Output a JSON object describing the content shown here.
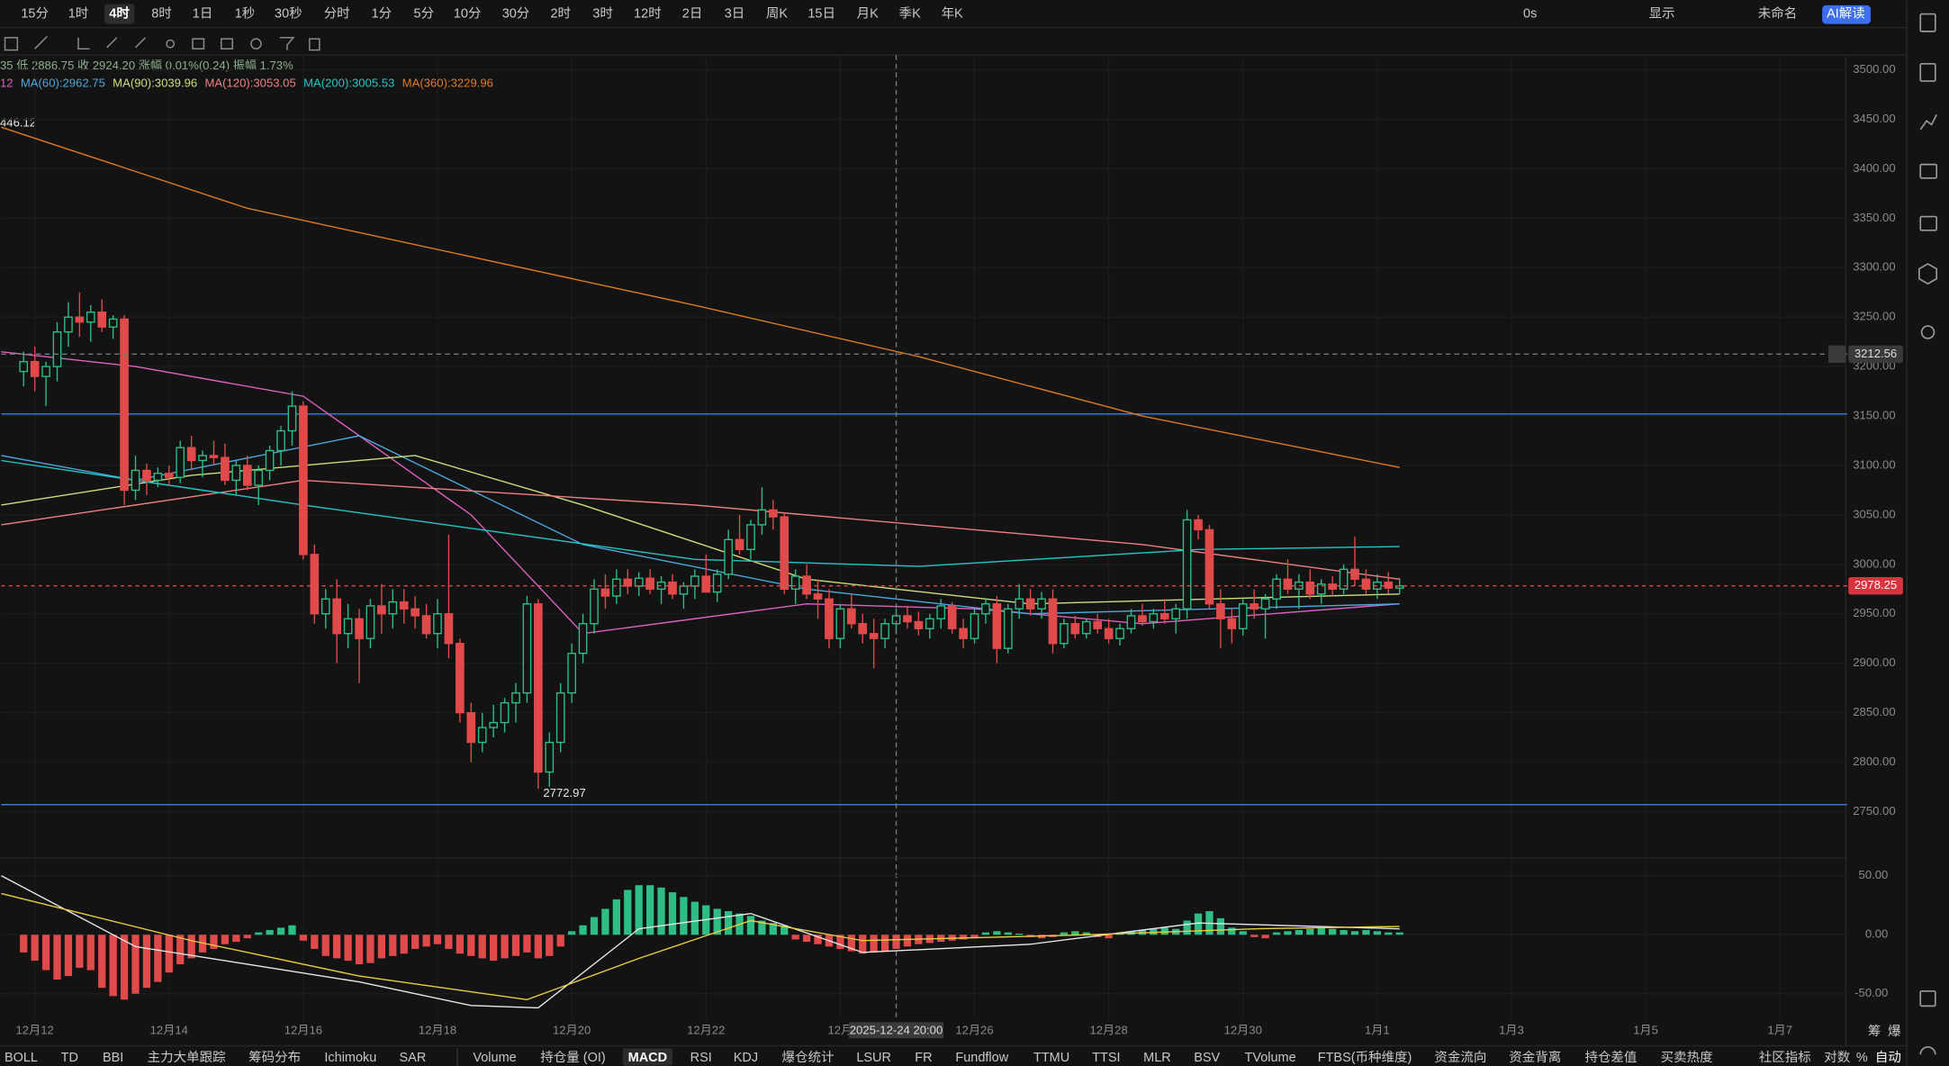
{
  "toolbar": {
    "timeframes": [
      "15分",
      "1时",
      "4时",
      "8时",
      "1日",
      "1秒",
      "30秒",
      "分时",
      "1分",
      "5分",
      "10分",
      "30分",
      "2时",
      "3时",
      "12时",
      "2日",
      "3日",
      "周K",
      "15日",
      "月K",
      "季K",
      "年K"
    ],
    "active": 2,
    "right": [
      "0s",
      "显示",
      "未命名",
      "AI解读"
    ]
  },
  "info_line": "35 低 2886.75 收 2924.20 涨幅 0.01%(0.24) 振幅 1.73%",
  "chart_data": [
    {
      "type": "candlestick",
      "up_color": "#2ebd85",
      "down_color": "#e04a4a",
      "grid": true,
      "xlim": [
        -2,
        163
      ],
      "ylim": [
        2703,
        3515
      ],
      "xticks": [
        {
          "value": 1,
          "label": "12月12"
        },
        {
          "value": 13,
          "label": "12月14"
        },
        {
          "value": 25,
          "label": "12月16"
        },
        {
          "value": 37,
          "label": "12月18"
        },
        {
          "value": 49,
          "label": "12月20"
        },
        {
          "value": 61,
          "label": "12月22"
        },
        {
          "value": 73,
          "label": "12月"
        },
        {
          "value": 85,
          "label": "12月26"
        },
        {
          "value": 97,
          "label": "12月28"
        },
        {
          "value": 109,
          "label": "12月30"
        },
        {
          "value": 121,
          "label": "1月1"
        },
        {
          "value": 133,
          "label": "1月3"
        },
        {
          "value": 145,
          "label": "1月5"
        },
        {
          "value": 157,
          "label": "1月7"
        }
      ],
      "yticks": [
        {
          "value": 3500,
          "label": "3500.00"
        },
        {
          "value": 3450,
          "label": "3450.00"
        },
        {
          "value": 3400,
          "label": "3400.00"
        },
        {
          "value": 3350,
          "label": "3350.00"
        },
        {
          "value": 3300,
          "label": "3300.00"
        },
        {
          "value": 3250,
          "label": "3250.00"
        },
        {
          "value": 3200,
          "label": "3200.00"
        },
        {
          "value": 3150,
          "label": "3150.00"
        },
        {
          "value": 3100,
          "label": "3100.00"
        },
        {
          "value": 3050,
          "label": "3050.00"
        },
        {
          "value": 3000,
          "label": "3000.00"
        },
        {
          "value": 2950,
          "label": "2950.00"
        },
        {
          "value": 2900,
          "label": "2900.00"
        },
        {
          "value": 2850,
          "label": "2850.00"
        },
        {
          "value": 2800,
          "label": "2800.00"
        },
        {
          "value": 2750,
          "label": "2750.00"
        }
      ],
      "ohlc": [
        [
          3195,
          3215,
          3180,
          3205
        ],
        [
          3205,
          3220,
          3175,
          3190
        ],
        [
          3190,
          3205,
          3160,
          3200
        ],
        [
          3200,
          3245,
          3185,
          3235
        ],
        [
          3235,
          3265,
          3220,
          3250
        ],
        [
          3250,
          3275,
          3230,
          3245
        ],
        [
          3245,
          3262,
          3225,
          3255
        ],
        [
          3255,
          3268,
          3235,
          3240
        ],
        [
          3240,
          3252,
          3228,
          3248
        ],
        [
          3248,
          3252,
          3060,
          3075
        ],
        [
          3075,
          3110,
          3065,
          3095
        ],
        [
          3095,
          3102,
          3070,
          3085
        ],
        [
          3085,
          3098,
          3078,
          3092
        ],
        [
          3092,
          3100,
          3080,
          3088
        ],
        [
          3088,
          3125,
          3082,
          3118
        ],
        [
          3118,
          3130,
          3095,
          3105
        ],
        [
          3105,
          3115,
          3088,
          3110
        ],
        [
          3110,
          3125,
          3100,
          3108
        ],
        [
          3108,
          3122,
          3080,
          3085
        ],
        [
          3085,
          3105,
          3070,
          3100
        ],
        [
          3100,
          3110,
          3075,
          3080
        ],
        [
          3080,
          3100,
          3060,
          3095
        ],
        [
          3095,
          3120,
          3085,
          3115
        ],
        [
          3115,
          3140,
          3100,
          3135
        ],
        [
          3135,
          3175,
          3120,
          3160
        ],
        [
          3160,
          3165,
          3005,
          3010
        ],
        [
          3010,
          3020,
          2940,
          2950
        ],
        [
          2950,
          2975,
          2935,
          2965
        ],
        [
          2965,
          2985,
          2900,
          2930
        ],
        [
          2930,
          2960,
          2915,
          2945
        ],
        [
          2945,
          2955,
          2880,
          2925
        ],
        [
          2925,
          2965,
          2915,
          2958
        ],
        [
          2958,
          2980,
          2930,
          2950
        ],
        [
          2950,
          2975,
          2935,
          2962
        ],
        [
          2962,
          2975,
          2940,
          2955
        ],
        [
          2955,
          2968,
          2935,
          2948
        ],
        [
          2948,
          2960,
          2925,
          2930
        ],
        [
          2930,
          2965,
          2915,
          2950
        ],
        [
          2950,
          3030,
          2905,
          2920
        ],
        [
          2920,
          2925,
          2840,
          2850
        ],
        [
          2850,
          2860,
          2800,
          2820
        ],
        [
          2820,
          2850,
          2810,
          2835
        ],
        [
          2835,
          2858,
          2825,
          2840
        ],
        [
          2840,
          2865,
          2830,
          2860
        ],
        [
          2860,
          2880,
          2840,
          2870
        ],
        [
          2870,
          2968,
          2860,
          2960
        ],
        [
          2960,
          2965,
          2772.97,
          2790
        ],
        [
          2790,
          2830,
          2775,
          2820
        ],
        [
          2820,
          2880,
          2810,
          2870
        ],
        [
          2870,
          2920,
          2860,
          2910
        ],
        [
          2910,
          2950,
          2900,
          2940
        ],
        [
          2940,
          2985,
          2930,
          2975
        ],
        [
          2975,
          2990,
          2955,
          2968
        ],
        [
          2968,
          2995,
          2960,
          2985
        ],
        [
          2985,
          2995,
          2970,
          2978
        ],
        [
          2978,
          2992,
          2968,
          2986
        ],
        [
          2986,
          2995,
          2970,
          2975
        ],
        [
          2975,
          2988,
          2960,
          2982
        ],
        [
          2982,
          2990,
          2965,
          2970
        ],
        [
          2970,
          2982,
          2955,
          2978
        ],
        [
          2978,
          2995,
          2965,
          2988
        ],
        [
          2988,
          3010,
          2975,
          2972
        ],
        [
          2972,
          2995,
          2962,
          2990
        ],
        [
          2990,
          3035,
          2985,
          3025
        ],
        [
          3025,
          3050,
          3010,
          3015
        ],
        [
          3015,
          3045,
          3005,
          3040
        ],
        [
          3040,
          3078,
          3030,
          3055
        ],
        [
          3055,
          3065,
          3035,
          3048
        ],
        [
          3048,
          3052,
          2970,
          2975
        ],
        [
          2975,
          2995,
          2960,
          2988
        ],
        [
          2988,
          3000,
          2965,
          2970
        ],
        [
          2970,
          2985,
          2945,
          2965
        ],
        [
          2965,
          2975,
          2915,
          2925
        ],
        [
          2925,
          2960,
          2915,
          2955
        ],
        [
          2955,
          2970,
          2935,
          2940
        ],
        [
          2940,
          2950,
          2920,
          2930
        ],
        [
          2930,
          2945,
          2895,
          2925
        ],
        [
          2925,
          2945,
          2915,
          2940
        ],
        [
          2940,
          2955,
          2930,
          2948
        ],
        [
          2948,
          2958,
          2935,
          2942
        ],
        [
          2942,
          2952,
          2928,
          2935
        ],
        [
          2935,
          2950,
          2925,
          2945
        ],
        [
          2945,
          2965,
          2935,
          2958
        ],
        [
          2958,
          2962,
          2930,
          2935
        ],
        [
          2935,
          2945,
          2915,
          2925
        ],
        [
          2925,
          2955,
          2920,
          2950
        ],
        [
          2950,
          2965,
          2940,
          2960
        ],
        [
          2960,
          2968,
          2900,
          2915
        ],
        [
          2915,
          2960,
          2910,
          2955
        ],
        [
          2955,
          2980,
          2945,
          2965
        ],
        [
          2965,
          2975,
          2948,
          2955
        ],
        [
          2955,
          2972,
          2945,
          2965
        ],
        [
          2965,
          2975,
          2910,
          2920
        ],
        [
          2920,
          2945,
          2915,
          2940
        ],
        [
          2940,
          2948,
          2925,
          2930
        ],
        [
          2930,
          2945,
          2925,
          2942
        ],
        [
          2942,
          2950,
          2930,
          2935
        ],
        [
          2935,
          2945,
          2920,
          2925
        ],
        [
          2925,
          2940,
          2918,
          2935
        ],
        [
          2935,
          2955,
          2930,
          2948
        ],
        [
          2948,
          2960,
          2938,
          2942
        ],
        [
          2942,
          2955,
          2935,
          2950
        ],
        [
          2950,
          2965,
          2940,
          2945
        ],
        [
          2945,
          2960,
          2930,
          2955
        ],
        [
          2955,
          3055,
          2945,
          3045
        ],
        [
          3045,
          3050,
          3025,
          3035
        ],
        [
          3035,
          3040,
          2955,
          2960
        ],
        [
          2960,
          2975,
          2915,
          2945
        ],
        [
          2945,
          2955,
          2920,
          2935
        ],
        [
          2935,
          2965,
          2928,
          2960
        ],
        [
          2960,
          2975,
          2945,
          2955
        ],
        [
          2955,
          2970,
          2925,
          2965
        ],
        [
          2965,
          2990,
          2955,
          2985
        ],
        [
          2985,
          3005,
          2970,
          2975
        ],
        [
          2975,
          2990,
          2955,
          2982
        ],
        [
          2982,
          2995,
          2965,
          2970
        ],
        [
          2970,
          2985,
          2960,
          2980
        ],
        [
          2980,
          2988,
          2968,
          2975
        ],
        [
          2975,
          3000,
          2970,
          2995
        ],
        [
          2995,
          3028,
          2978,
          2985
        ],
        [
          2985,
          2995,
          2970,
          2975
        ],
        [
          2975,
          2990,
          2965,
          2982
        ],
        [
          2982,
          2992,
          2970,
          2976
        ],
        [
          2976,
          2986,
          2970,
          2978.25
        ]
      ],
      "ma_lines": [
        {
          "name": "12",
          "color": "#e060c0",
          "x": [
            -2,
            10,
            25,
            40,
            50,
            70,
            85,
            100,
            123
          ],
          "values": [
            3215,
            3200,
            3170,
            3050,
            2930,
            2960,
            2955,
            2940,
            2960
          ]
        },
        {
          "name": "MA(60):2962.75",
          "color": "#4aa8e0",
          "x": [
            -2,
            10,
            30,
            50,
            70,
            90,
            123
          ],
          "values": [
            3110,
            3085,
            3130,
            3020,
            2975,
            2950,
            2960
          ]
        },
        {
          "name": "MA(90):3039.96",
          "color": "#c8e07a",
          "x": [
            -2,
            15,
            35,
            50,
            70,
            90,
            123
          ],
          "values": [
            3060,
            3090,
            3110,
            3060,
            2985,
            2960,
            2970
          ]
        },
        {
          "name": "MA(120):3053.05",
          "color": "#f08080",
          "x": [
            -2,
            25,
            60,
            80,
            100,
            123
          ],
          "values": [
            3040,
            3085,
            3060,
            3040,
            3020,
            2985
          ]
        },
        {
          "name": "MA(200):3005.53",
          "color": "#22c8c8",
          "x": [
            -2,
            25,
            60,
            80,
            105,
            123
          ],
          "values": [
            3105,
            3060,
            3005,
            2998,
            3015,
            3018
          ]
        },
        {
          "name": "MA(360):3229.96",
          "color": "#e07a20",
          "x": [
            -2,
            20,
            60,
            80,
            100,
            123
          ],
          "values": [
            3442,
            3360,
            3262,
            3210,
            3150,
            3098
          ]
        }
      ],
      "hlines": [
        {
          "value": 3152,
          "color": "#3d7fd9"
        },
        {
          "value": 2757,
          "color": "#3d7fd9"
        }
      ],
      "last_price": 2978.25,
      "crosshair": {
        "price": 3212.56,
        "index": 78,
        "label": "2025-12-24 20:00"
      },
      "low_marker": {
        "value": 2772.97,
        "index": 46
      },
      "edge_label": "446.12"
    },
    {
      "type": "bar",
      "up_color": "#2ebd85",
      "down_color": "#e04a4a",
      "xlim": [
        -2,
        163
      ],
      "ylim": [
        -72,
        65
      ],
      "yticks": [
        {
          "value": 50,
          "label": "50.00"
        },
        {
          "value": 0,
          "label": "0.00"
        },
        {
          "value": -50,
          "label": "-50.00"
        }
      ],
      "values": [
        -15,
        -22,
        -30,
        -38,
        -35,
        -28,
        -30,
        -45,
        -52,
        -55,
        -50,
        -45,
        -40,
        -32,
        -25,
        -20,
        -15,
        -12,
        -8,
        -6,
        -3,
        2,
        4,
        6,
        8,
        -5,
        -12,
        -18,
        -20,
        -22,
        -25,
        -24,
        -20,
        -18,
        -16,
        -12,
        -10,
        -8,
        -12,
        -16,
        -18,
        -20,
        -22,
        -20,
        -18,
        -15,
        -20,
        -18,
        -10,
        3,
        8,
        15,
        22,
        30,
        38,
        42,
        42,
        40,
        36,
        32,
        28,
        25,
        22,
        20,
        18,
        16,
        12,
        10,
        8,
        -4,
        -6,
        -8,
        -10,
        -12,
        -14,
        -16,
        -15,
        -14,
        -12,
        -10,
        -8,
        -7,
        -6,
        -5,
        -4,
        -3,
        2,
        3,
        2,
        1,
        -2,
        -3,
        -2,
        2,
        3,
        2,
        -2,
        -3,
        2,
        3,
        4,
        5,
        6,
        5,
        12,
        18,
        20,
        14,
        6,
        3,
        -2,
        -3,
        2,
        3,
        4,
        5,
        6,
        5,
        4,
        3,
        4,
        3,
        2,
        2
      ],
      "lines": [
        {
          "color": "#e8e8e8",
          "x": [
            -2,
            10,
            20,
            30,
            40,
            46,
            55,
            65,
            75,
            90,
            105,
            123
          ],
          "values": [
            50,
            -10,
            -25,
            -40,
            -60,
            -62,
            5,
            18,
            -15,
            -8,
            10,
            5
          ]
        },
        {
          "color": "#e8d040",
          "x": [
            -2,
            15,
            30,
            45,
            55,
            65,
            75,
            95,
            110,
            123
          ],
          "values": [
            35,
            -5,
            -35,
            -55,
            -20,
            12,
            -5,
            0,
            5,
            7
          ]
        }
      ]
    }
  ],
  "indicator_tabs": {
    "main": [
      "BOLL",
      "TD",
      "BBI",
      "主力大单跟踪",
      "筹码分布",
      "Ichimoku",
      "SAR"
    ],
    "sub": [
      "Volume",
      "持仓量 (OI)",
      "MACD",
      "RSI",
      "KDJ",
      "爆仓统计",
      "LSUR",
      "FR",
      "Fundflow",
      "TTMU",
      "TTSI",
      "MLR",
      "BSV",
      "TVolume",
      "FTBS(币种维度)",
      "资金流向",
      "资金背离",
      "持仓差值",
      "买卖热度"
    ],
    "active_sub": 2,
    "right": [
      "社区指标",
      "对数",
      "%",
      "自动"
    ]
  },
  "side_labels": [
    "筹",
    "爆"
  ]
}
